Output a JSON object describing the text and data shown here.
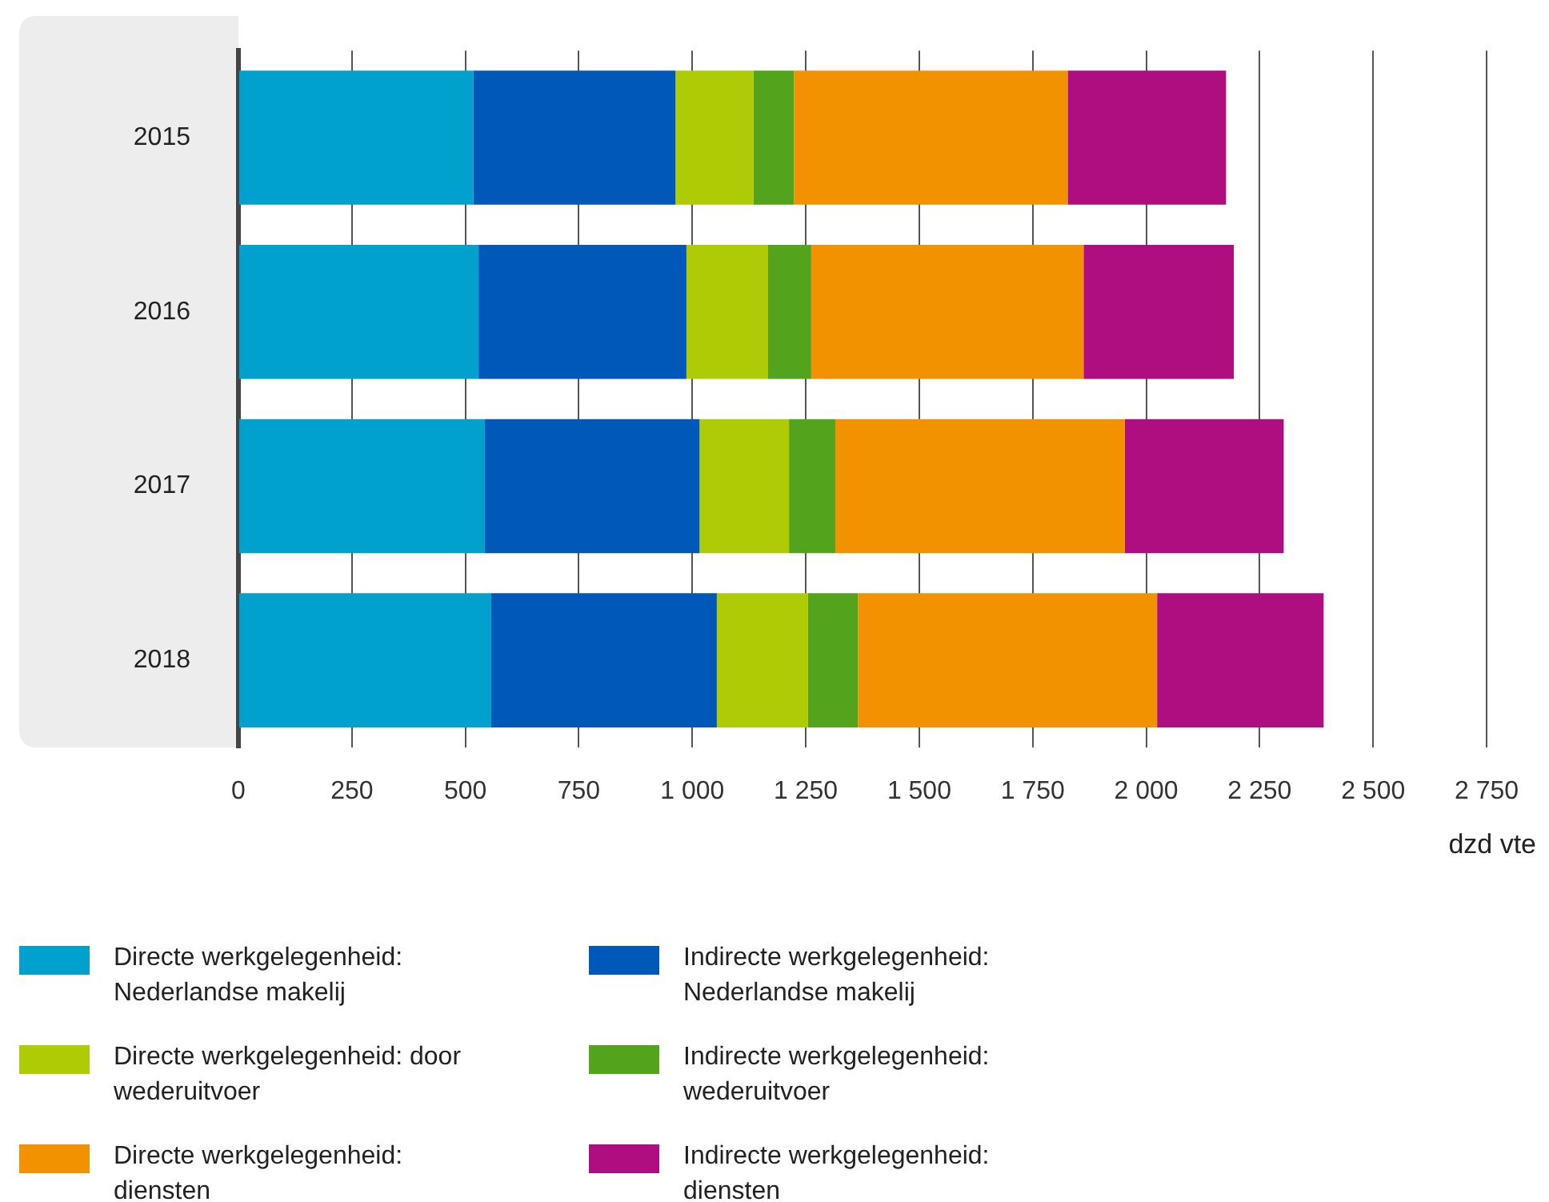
{
  "chart_data": {
    "type": "bar",
    "orientation": "horizontal",
    "stacked": true,
    "xlabel": "dzd vte",
    "categories": [
      "2015",
      "2016",
      "2017",
      "2018"
    ],
    "series": [
      {
        "name": "Directe werkgelegenheid: Nederlandse makelij",
        "color": "#00a1cd",
        "values": [
          518,
          529,
          543,
          557
        ]
      },
      {
        "name": "Indirecte werkgelegenheid: Nederlandse makelij",
        "color": "#0058b8",
        "values": [
          445,
          458,
          473,
          497
        ]
      },
      {
        "name": "Directe werkgelegenheid: door wederuitvoer",
        "color": "#afcb05",
        "values": [
          172,
          180,
          197,
          201
        ]
      },
      {
        "name": "Indirecte werkgelegenheid: wederuitvoer",
        "color": "#53a31d",
        "values": [
          89,
          95,
          102,
          110
        ]
      },
      {
        "name": "Directe werkgelegenheid: diensten",
        "color": "#f39200",
        "values": [
          603,
          600,
          638,
          659
        ]
      },
      {
        "name": "Indirecte werkgelegenheid: diensten",
        "color": "#af0e80",
        "values": [
          349,
          331,
          350,
          367
        ]
      }
    ],
    "xlim": [
      0,
      2750
    ],
    "xticks": [
      0,
      250,
      500,
      750,
      {
        "value": 1000,
        "label": "1 000"
      },
      {
        "value": 1250,
        "label": "1 250"
      },
      {
        "value": 1500,
        "label": "1 500"
      },
      {
        "value": 1750,
        "label": "1 750"
      },
      {
        "value": 2000,
        "label": "2 000"
      },
      {
        "value": 2250,
        "label": "2 250"
      },
      {
        "value": 2500,
        "label": "2 500"
      },
      {
        "value": 2750,
        "label": "2 750"
      }
    ],
    "grid": "x",
    "legend": "bottom"
  }
}
